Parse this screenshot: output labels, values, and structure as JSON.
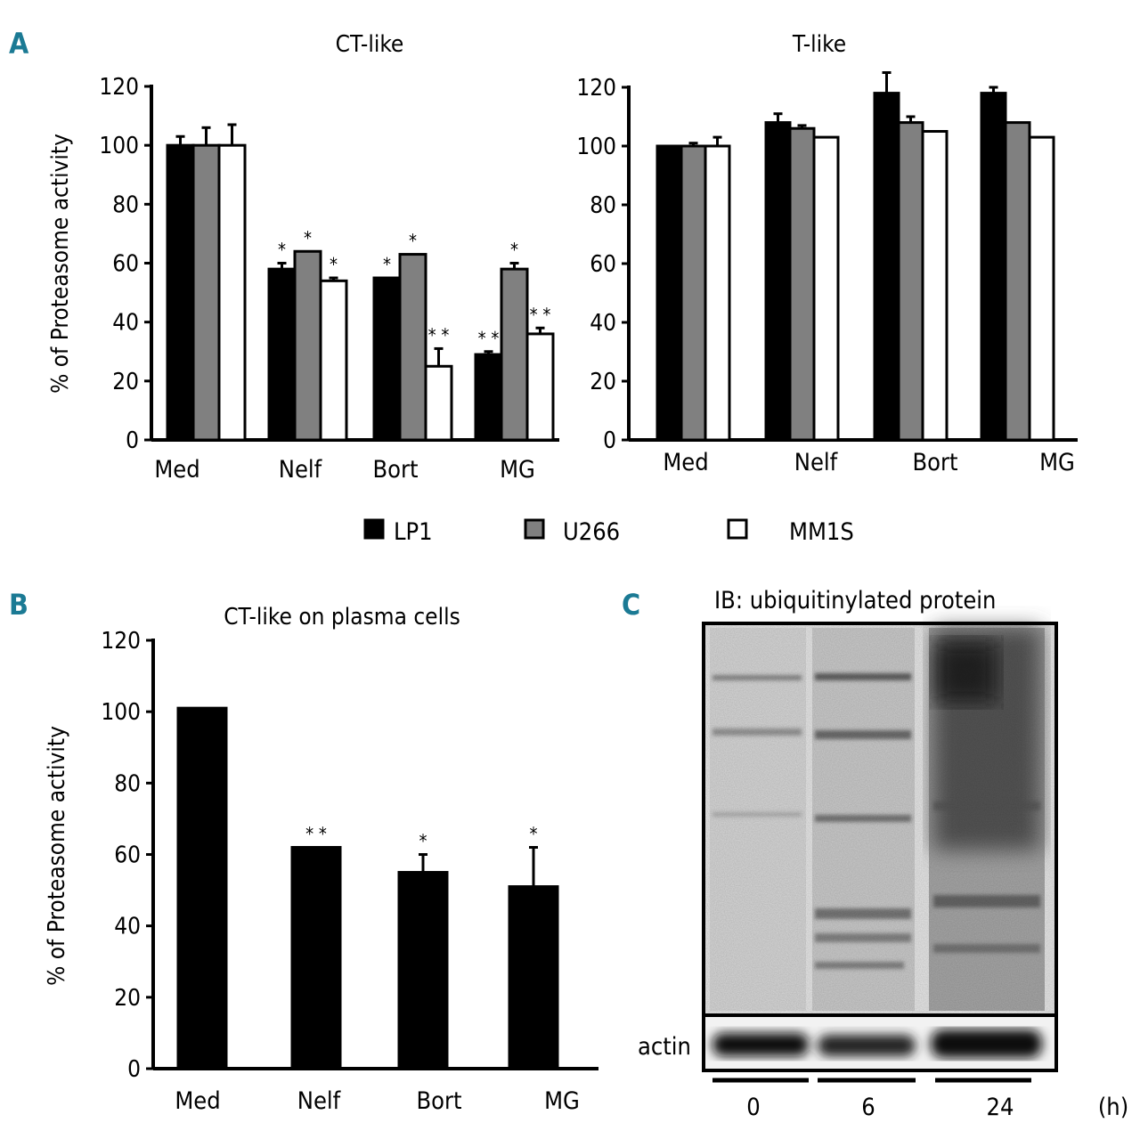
{
  "panel_labels": {
    "a": "A",
    "b": "B",
    "c": "C"
  },
  "colors": {
    "LP1": "#000000",
    "U266": "#808080",
    "MM1S": "#ffffff",
    "plasma": "#000000"
  },
  "legend": [
    {
      "name": "LP1",
      "color": "#000000"
    },
    {
      "name": "U266",
      "color": "#808080"
    },
    {
      "name": "MM1S",
      "color": "#ffffff"
    }
  ],
  "chart_data": [
    {
      "id": "ct-like",
      "type": "bar",
      "title": "CT-like",
      "ylabel": "% of Proteasome activity",
      "ylim": [
        0,
        120
      ],
      "yticks": [
        0,
        20,
        40,
        60,
        80,
        100,
        120
      ],
      "categories": [
        "Med",
        "Nelf",
        "Bort",
        "MG"
      ],
      "series": [
        {
          "name": "LP1",
          "values": [
            100,
            58,
            55,
            29
          ],
          "errors": [
            3,
            2,
            0,
            1
          ],
          "stars": [
            "",
            "*",
            "*",
            "**"
          ]
        },
        {
          "name": "U266",
          "values": [
            100,
            64,
            63,
            58
          ],
          "errors": [
            6,
            0,
            0,
            2
          ],
          "stars": [
            "",
            "*",
            "*",
            "*"
          ]
        },
        {
          "name": "MM1S",
          "values": [
            100,
            54,
            25,
            36
          ],
          "errors": [
            7,
            1,
            6,
            2
          ],
          "stars": [
            "",
            "*",
            "**",
            "**"
          ]
        }
      ]
    },
    {
      "id": "t-like",
      "type": "bar",
      "title": "T-like",
      "ylabel": "",
      "ylim": [
        0,
        120
      ],
      "yticks": [
        0,
        20,
        40,
        60,
        80,
        100,
        120
      ],
      "categories": [
        "Med",
        "Nelf",
        "Bort",
        "MG"
      ],
      "series": [
        {
          "name": "LP1",
          "values": [
            100,
            108,
            118,
            118
          ],
          "errors": [
            0,
            3,
            7,
            2
          ]
        },
        {
          "name": "U266",
          "values": [
            100,
            106,
            108,
            108
          ],
          "errors": [
            1,
            1,
            2,
            0
          ]
        },
        {
          "name": "MM1S",
          "values": [
            100,
            103,
            105,
            103
          ],
          "errors": [
            3,
            0,
            0,
            0
          ]
        }
      ]
    },
    {
      "id": "ct-plasma",
      "type": "bar",
      "title": "CT-like on plasma cells",
      "ylabel": "% of Proteasome activity",
      "ylim": [
        0,
        120
      ],
      "yticks": [
        0,
        20,
        40,
        60,
        80,
        100,
        120
      ],
      "categories": [
        "Med",
        "Nelf",
        "Bort",
        "MG"
      ],
      "series": [
        {
          "name": "plasma cells",
          "values": [
            101,
            62,
            55,
            51
          ],
          "errors": [
            0,
            0,
            5,
            11
          ],
          "stars": [
            "",
            "**",
            "*",
            "*"
          ]
        }
      ]
    }
  ],
  "blot": {
    "title": "IB: ubiquitinylated protein",
    "loading_label": "actin",
    "timepoints": [
      "0",
      "6",
      "24"
    ],
    "unit": "(h)"
  }
}
